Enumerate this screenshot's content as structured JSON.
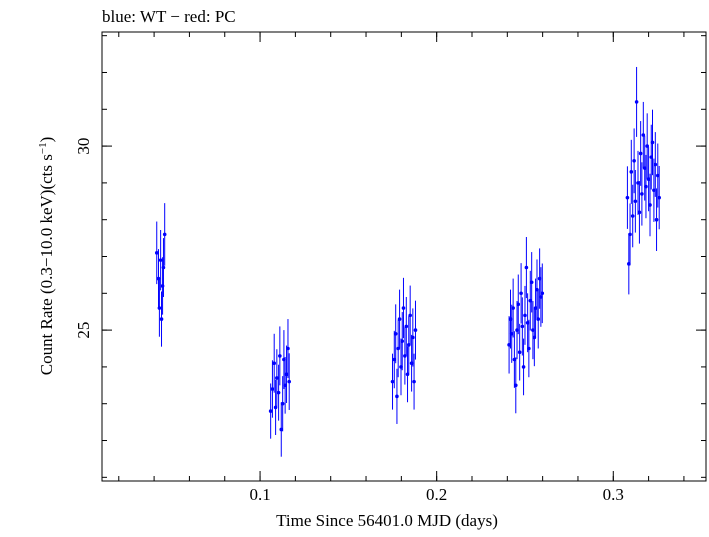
{
  "chart_data": {
    "type": "scatter",
    "title": "blue: WT − red: PC",
    "xlabel": "Time Since 56401.0 MJD (days)",
    "ylabel_main": "Count Rate (0.3−10.0 keV)(cts s",
    "ylabel_sup": "−1",
    "ylabel_end": ")",
    "xlim": [
      0.0105,
      0.3525
    ],
    "ylim": [
      20.9,
      33.1
    ],
    "x_ticks": [
      {
        "value": 0.1,
        "label": "0.1"
      },
      {
        "value": 0.2,
        "label": "0.2"
      },
      {
        "value": 0.3,
        "label": "0.3"
      }
    ],
    "y_ticks": [
      {
        "value": 25,
        "label": "25"
      },
      {
        "value": 30,
        "label": "30"
      }
    ],
    "x_minor_step": 0.02,
    "y_minor_step": 1,
    "grid": false,
    "series": [
      {
        "name": "WT",
        "color": "#0000ff",
        "points": [
          [
            0.0415,
            27.1,
            0.85
          ],
          [
            0.0425,
            26.4,
            0.8
          ],
          [
            0.043,
            25.6,
            0.78
          ],
          [
            0.0437,
            26.9,
            0.82
          ],
          [
            0.0442,
            25.3,
            0.75
          ],
          [
            0.0448,
            26.2,
            0.78
          ],
          [
            0.0453,
            26.7,
            0.8
          ],
          [
            0.046,
            27.6,
            0.85
          ],
          [
            0.106,
            22.8,
            0.75
          ],
          [
            0.107,
            23.4,
            0.78
          ],
          [
            0.108,
            24.1,
            0.8
          ],
          [
            0.1088,
            22.9,
            0.75
          ],
          [
            0.1095,
            23.7,
            0.78
          ],
          [
            0.1105,
            23.3,
            0.76
          ],
          [
            0.1112,
            24.3,
            0.8
          ],
          [
            0.112,
            22.3,
            0.74
          ],
          [
            0.1128,
            23.0,
            0.75
          ],
          [
            0.1135,
            24.2,
            0.8
          ],
          [
            0.1142,
            23.5,
            0.77
          ],
          [
            0.115,
            23.8,
            0.78
          ],
          [
            0.1158,
            24.5,
            0.8
          ],
          [
            0.1165,
            23.6,
            0.77
          ],
          [
            0.175,
            23.6,
            0.76
          ],
          [
            0.176,
            24.2,
            0.78
          ],
          [
            0.1768,
            24.9,
            0.8
          ],
          [
            0.1775,
            23.2,
            0.75
          ],
          [
            0.1782,
            24.5,
            0.78
          ],
          [
            0.179,
            25.3,
            0.8
          ],
          [
            0.1798,
            24.0,
            0.77
          ],
          [
            0.1805,
            24.7,
            0.79
          ],
          [
            0.1812,
            25.6,
            0.82
          ],
          [
            0.182,
            24.3,
            0.78
          ],
          [
            0.1828,
            25.1,
            0.8
          ],
          [
            0.1835,
            23.8,
            0.76
          ],
          [
            0.1842,
            24.6,
            0.78
          ],
          [
            0.185,
            25.4,
            0.81
          ],
          [
            0.1858,
            24.1,
            0.77
          ],
          [
            0.1865,
            24.8,
            0.79
          ],
          [
            0.1872,
            23.6,
            0.76
          ],
          [
            0.188,
            25.0,
            0.8
          ],
          [
            0.241,
            24.6,
            0.78
          ],
          [
            0.2418,
            25.3,
            0.8
          ],
          [
            0.2425,
            24.9,
            0.79
          ],
          [
            0.2433,
            25.6,
            0.8
          ],
          [
            0.244,
            24.2,
            0.77
          ],
          [
            0.2448,
            23.5,
            0.76
          ],
          [
            0.2455,
            25.0,
            0.79
          ],
          [
            0.2462,
            25.7,
            0.81
          ],
          [
            0.247,
            24.4,
            0.77
          ],
          [
            0.2478,
            26.0,
            0.82
          ],
          [
            0.2485,
            25.1,
            0.79
          ],
          [
            0.2492,
            24.0,
            0.77
          ],
          [
            0.25,
            25.4,
            0.8
          ],
          [
            0.2508,
            26.7,
            0.83
          ],
          [
            0.2515,
            25.2,
            0.8
          ],
          [
            0.2522,
            24.5,
            0.78
          ],
          [
            0.253,
            25.8,
            0.81
          ],
          [
            0.2538,
            26.3,
            0.82
          ],
          [
            0.2545,
            25.0,
            0.79
          ],
          [
            0.2553,
            24.8,
            0.78
          ],
          [
            0.256,
            25.6,
            0.8
          ],
          [
            0.2568,
            26.1,
            0.82
          ],
          [
            0.2575,
            25.3,
            0.8
          ],
          [
            0.2583,
            26.4,
            0.82
          ],
          [
            0.259,
            25.9,
            0.81
          ],
          [
            0.2598,
            26.0,
            0.81
          ],
          [
            0.308,
            28.6,
            0.85
          ],
          [
            0.3088,
            26.8,
            0.83
          ],
          [
            0.3095,
            27.6,
            0.84
          ],
          [
            0.3102,
            29.3,
            0.87
          ],
          [
            0.311,
            28.1,
            0.85
          ],
          [
            0.3118,
            29.6,
            0.88
          ],
          [
            0.3125,
            28.5,
            0.85
          ],
          [
            0.3132,
            31.2,
            0.95
          ],
          [
            0.314,
            29.0,
            0.87
          ],
          [
            0.3148,
            28.2,
            0.85
          ],
          [
            0.3155,
            29.8,
            0.88
          ],
          [
            0.3162,
            28.7,
            0.86
          ],
          [
            0.317,
            30.3,
            0.9
          ],
          [
            0.3178,
            29.4,
            0.88
          ],
          [
            0.3185,
            28.9,
            0.86
          ],
          [
            0.3192,
            30.0,
            0.89
          ],
          [
            0.32,
            29.1,
            0.87
          ],
          [
            0.3208,
            28.4,
            0.85
          ],
          [
            0.3215,
            29.7,
            0.88
          ],
          [
            0.3222,
            30.1,
            0.89
          ],
          [
            0.323,
            28.8,
            0.86
          ],
          [
            0.3238,
            29.5,
            0.88
          ],
          [
            0.3245,
            28.0,
            0.85
          ],
          [
            0.3252,
            29.2,
            0.87
          ],
          [
            0.326,
            28.6,
            0.86
          ]
        ]
      }
    ]
  }
}
